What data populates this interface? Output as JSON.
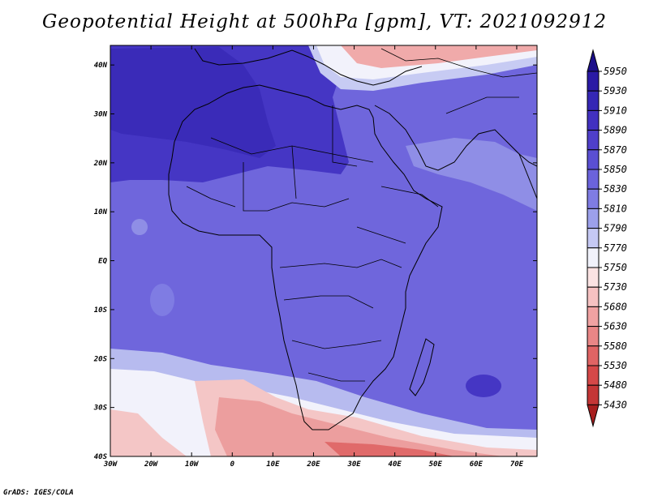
{
  "title": "Geopotential Height at 500hPa [gpm], VT: 2021092912",
  "credit": "GrADS: IGES/COLA",
  "map": {
    "lon_labels": [
      "30W",
      "20W",
      "10W",
      "0",
      "10E",
      "20E",
      "30E",
      "40E",
      "50E",
      "60E",
      "70E"
    ],
    "lat_labels": [
      "40N",
      "30N",
      "20N",
      "10N",
      "EQ",
      "10S",
      "20S",
      "30S",
      "40S"
    ],
    "lon_range": [
      -30,
      75
    ],
    "lat_range": [
      -40,
      44
    ]
  },
  "colorbar": {
    "labels": [
      "5950",
      "5930",
      "5910",
      "5890",
      "5870",
      "5850",
      "5830",
      "5810",
      "5790",
      "5770",
      "5750",
      "5730",
      "5680",
      "5630",
      "5580",
      "5530",
      "5480",
      "5430"
    ],
    "colors": [
      "#1c0f8a",
      "#2a1aa5",
      "#3527b5",
      "#4231c0",
      "#4f3fca",
      "#5a4fd3",
      "#6b63dc",
      "#7f7ce3",
      "#9ca0eb",
      "#c5c9f4",
      "#f1f2fb",
      "#fbe3e3",
      "#f6c2c2",
      "#f0a2a2",
      "#e98686",
      "#e06464",
      "#d54848",
      "#c43636",
      "#a71e1e"
    ]
  },
  "field_colors": {
    "deep": "#3d2fbf",
    "mid": "#5e52d4",
    "main": "#6f66dc",
    "light": "#8f8ee6",
    "pale": "#c7cbf3",
    "white": "#f2f2fb",
    "pink": "#f4c6c6",
    "salmon": "#ec9e9e",
    "red": "#e27070",
    "dark_red": "#d24c4c"
  }
}
